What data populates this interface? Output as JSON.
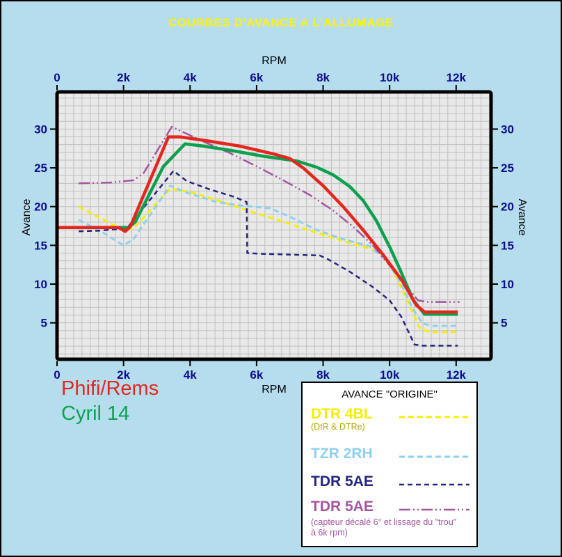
{
  "title": "COURBES D'AVANCE A L'ALLUMAGE",
  "axes": {
    "x_label_top": "RPM",
    "x_label_bottom": "RPM",
    "y_label_left": "Avance",
    "y_label_right": "Avance",
    "tick_color": "#0c0c8c",
    "x_ticks": [
      {
        "value": 0,
        "label": "0"
      },
      {
        "value": 2,
        "label": "2k"
      },
      {
        "value": 4,
        "label": "4k"
      },
      {
        "value": 6,
        "label": "6k"
      },
      {
        "value": 8,
        "label": "8k"
      },
      {
        "value": 10,
        "label": "10k"
      },
      {
        "value": 12,
        "label": "12k"
      }
    ],
    "y_ticks": [
      {
        "value": 5,
        "label": "5"
      },
      {
        "value": 10,
        "label": "10"
      },
      {
        "value": 15,
        "label": "15"
      },
      {
        "value": 20,
        "label": "20"
      },
      {
        "value": 25,
        "label": "25"
      },
      {
        "value": 30,
        "label": "30"
      }
    ]
  },
  "annotations": [
    {
      "text": "Phifi/Rems",
      "color": "#e3271d"
    },
    {
      "text": "Cyril 14",
      "color": "#0da04f"
    }
  ],
  "legend": {
    "title": "AVANCE \"ORIGINE\"",
    "entries": [
      {
        "label": "DTR 4BL",
        "sub": "(DtR & DTRe)",
        "color": "#f6ee00",
        "sub_color": "#b3a800",
        "series_key": "dtr4bl"
      },
      {
        "label": "TZR 2RH",
        "color": "#8fd0ec",
        "series_key": "tzr2rh"
      },
      {
        "label": "TDR 5AE",
        "color": "#26247f",
        "series_key": "tdr5ae"
      },
      {
        "label": "TDR 5AE",
        "sub": "(capteur décalé 6° et lissage du \"trou\" à 6k rpm)",
        "color": "#a4559f",
        "series_key": "tdr5ae_mod"
      }
    ]
  },
  "chart_data": {
    "type": "line",
    "title": "COURBES D'AVANCE A L'ALLUMAGE",
    "xlabel": "RPM",
    "ylabel": "Avance",
    "x_unit": "rpm (thousands)",
    "y_unit": "degrees of advance",
    "xlim": [
      0,
      13.05
    ],
    "ylim": [
      0.3,
      34.8
    ],
    "plot_bg": "#e9e9e9",
    "grid": {
      "x_step": 0.25,
      "y_step": 1,
      "color": "#bfbfbf"
    },
    "legend_position": "bottom-right",
    "series": [
      {
        "key": "dtr4bl",
        "name": "DTR 4BL (DtR & DTRe)",
        "color": "#f6ee00",
        "width": 3,
        "dash": "8,5",
        "points": [
          [
            0.65,
            20
          ],
          [
            1.4,
            18.3
          ],
          [
            2,
            16.9
          ],
          [
            2.3,
            17.2
          ],
          [
            3.4,
            22.3
          ],
          [
            4,
            21.9
          ],
          [
            4.9,
            20.7
          ],
          [
            5.8,
            19.4
          ],
          [
            6.7,
            18.2
          ],
          [
            7.6,
            16.9
          ],
          [
            8.5,
            15.7
          ],
          [
            9.3,
            14.7
          ],
          [
            9.7,
            14.2
          ],
          [
            10.1,
            11.8
          ],
          [
            10.5,
            8.2
          ],
          [
            10.9,
            4.4
          ],
          [
            11.2,
            3.8
          ],
          [
            12.05,
            3.8
          ]
        ]
      },
      {
        "key": "tzr2rh",
        "name": "TZR 2RH",
        "color": "#8fd0ec",
        "width": 3,
        "dash": "8,5",
        "points": [
          [
            0.65,
            18.3
          ],
          [
            1.4,
            16.6
          ],
          [
            2,
            15
          ],
          [
            2.3,
            15.8
          ],
          [
            3.4,
            22.7
          ],
          [
            3.9,
            21.8
          ],
          [
            4.8,
            20.6
          ],
          [
            5.6,
            20.1
          ],
          [
            6.4,
            19.8
          ],
          [
            7,
            18.7
          ],
          [
            7.8,
            17
          ],
          [
            8.6,
            15.8
          ],
          [
            9.4,
            14.9
          ],
          [
            9.9,
            13
          ],
          [
            10.3,
            10.5
          ],
          [
            10.7,
            6.8
          ],
          [
            11,
            4.9
          ],
          [
            11.3,
            4.6
          ],
          [
            12.05,
            4.6
          ]
        ]
      },
      {
        "key": "tdr5ae",
        "name": "TDR 5AE",
        "color": "#26247f",
        "width": 2.5,
        "dash": "7,5",
        "points": [
          [
            0.65,
            16.8
          ],
          [
            1.3,
            16.9
          ],
          [
            2.1,
            17.2
          ],
          [
            3.5,
            24.6
          ],
          [
            3.9,
            23.3
          ],
          [
            4.6,
            22.2
          ],
          [
            5.3,
            21.3
          ],
          [
            5.7,
            20.6
          ],
          [
            5.72,
            14
          ],
          [
            6.2,
            13.9
          ],
          [
            7.9,
            13.7
          ],
          [
            8.15,
            13.2
          ],
          [
            8.8,
            11.6
          ],
          [
            9.5,
            9.6
          ],
          [
            10,
            7.9
          ],
          [
            10.35,
            5.8
          ],
          [
            10.75,
            2.2
          ],
          [
            11,
            2.05
          ],
          [
            12.05,
            2.05
          ]
        ]
      },
      {
        "key": "tdr5ae_mod",
        "name": "TDR 5AE (capteur décalé 6°, lissage du \"trou\" à 6k rpm)",
        "color": "#a4559f",
        "width": 2.5,
        "dash": "16,4,2,4,2,4",
        "points": [
          [
            0.65,
            23
          ],
          [
            1.6,
            23.1
          ],
          [
            2.3,
            23.4
          ],
          [
            2.6,
            24.3
          ],
          [
            3.45,
            30.3
          ],
          [
            3.8,
            29.6
          ],
          [
            4.4,
            28.4
          ],
          [
            5.2,
            26.9
          ],
          [
            6,
            25.2
          ],
          [
            6.8,
            23.4
          ],
          [
            7.6,
            21.5
          ],
          [
            8.3,
            19.5
          ],
          [
            8.9,
            17.4
          ],
          [
            9.5,
            15
          ],
          [
            10,
            12.4
          ],
          [
            10.5,
            9.8
          ],
          [
            10.85,
            7.9
          ],
          [
            11.1,
            7.7
          ],
          [
            12.1,
            7.7
          ]
        ]
      },
      {
        "key": "cyril",
        "name": "Cyril 14",
        "color": "#0da04f",
        "width": 4.5,
        "dash": null,
        "points": [
          [
            0,
            17.3
          ],
          [
            2.15,
            17.3
          ],
          [
            2.35,
            18
          ],
          [
            3.2,
            25.2
          ],
          [
            3.85,
            28.1
          ],
          [
            4.4,
            27.8
          ],
          [
            5.3,
            27.2
          ],
          [
            6.2,
            26.5
          ],
          [
            7.2,
            25.9
          ],
          [
            7.8,
            25.1
          ],
          [
            8.3,
            24.1
          ],
          [
            8.8,
            22.6
          ],
          [
            9.2,
            20.8
          ],
          [
            9.6,
            18.2
          ],
          [
            10,
            14.8
          ],
          [
            10.3,
            12
          ],
          [
            10.7,
            8
          ],
          [
            11.05,
            6.1
          ],
          [
            12.05,
            6.1
          ]
        ]
      },
      {
        "key": "phifi",
        "name": "Phifi/Rems",
        "color": "#e3271d",
        "width": 4.5,
        "dash": null,
        "points": [
          [
            0,
            17.3
          ],
          [
            1.85,
            17.3
          ],
          [
            2.05,
            16.8
          ],
          [
            2.2,
            17.4
          ],
          [
            3.35,
            29
          ],
          [
            3.7,
            29
          ],
          [
            4.5,
            28.5
          ],
          [
            5.5,
            27.8
          ],
          [
            6.5,
            26.8
          ],
          [
            7,
            26.2
          ],
          [
            7.4,
            25
          ],
          [
            8,
            22.7
          ],
          [
            8.6,
            20
          ],
          [
            9.2,
            17
          ],
          [
            9.8,
            13.8
          ],
          [
            10.4,
            10.3
          ],
          [
            10.8,
            7.3
          ],
          [
            11.05,
            6.4
          ],
          [
            12.05,
            6.4
          ]
        ]
      }
    ]
  }
}
